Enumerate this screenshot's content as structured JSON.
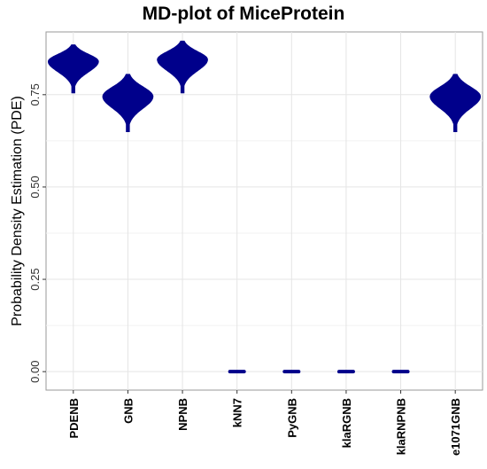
{
  "chart_data": {
    "type": "violin",
    "title": "MD-plot of MiceProtein",
    "xlabel": "",
    "ylabel": "Probability Density Estimation (PDE)",
    "ylim": [
      -0.05,
      0.92
    ],
    "yticks": [
      "0.00",
      "0.25",
      "0.50",
      "0.75"
    ],
    "ytick_values": [
      0,
      0.25,
      0.5,
      0.75
    ],
    "grid": true,
    "fill_color": "#00008B",
    "categories": [
      "PDENB",
      "GNB",
      "NPNB",
      "kNN7",
      "PyGNB",
      "klaRGNB",
      "klaRNPNB",
      "e1071GNB"
    ],
    "series": [
      {
        "category": "PDENB",
        "center": 0.84,
        "min": 0.755,
        "max": 0.885,
        "shape": "violin"
      },
      {
        "category": "GNB",
        "center": 0.745,
        "min": 0.65,
        "max": 0.805,
        "shape": "violin"
      },
      {
        "category": "NPNB",
        "center": 0.845,
        "min": 0.755,
        "max": 0.895,
        "shape": "violin"
      },
      {
        "category": "kNN7",
        "center": 0.0,
        "min": 0.0,
        "max": 0.0,
        "shape": "point"
      },
      {
        "category": "PyGNB",
        "center": 0.0,
        "min": 0.0,
        "max": 0.0,
        "shape": "point"
      },
      {
        "category": "klaRGNB",
        "center": 0.0,
        "min": 0.0,
        "max": 0.0,
        "shape": "point"
      },
      {
        "category": "klaRNPNB",
        "center": 0.0,
        "min": 0.0,
        "max": 0.0,
        "shape": "point"
      },
      {
        "category": "e1071GNB",
        "center": 0.745,
        "min": 0.65,
        "max": 0.805,
        "shape": "violin"
      }
    ]
  }
}
